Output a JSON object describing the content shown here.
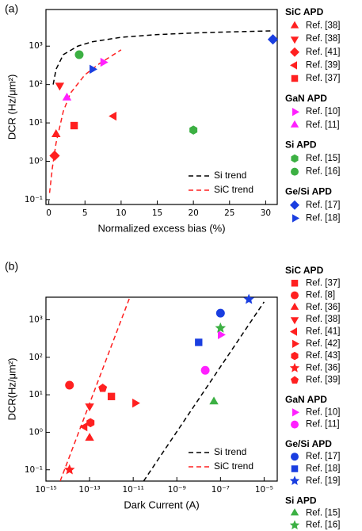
{
  "chart_data": [
    {
      "type": "scatter",
      "panel_label": "(a)",
      "xlabel": "Normalized excess bias (%)",
      "ylabel": "DCR (Hz/μm²)",
      "xscale": "linear",
      "yscale": "log",
      "xlim": [
        -0.4,
        31.6
      ],
      "ylim": [
        0.075,
        9000
      ],
      "xticks": [
        0,
        5,
        10,
        15,
        20,
        25,
        30
      ],
      "yticks": [
        {
          "value": 0.1,
          "label": "10⁻¹"
        },
        {
          "value": 1,
          "label": "10⁰"
        },
        {
          "value": 10,
          "label": "10¹"
        },
        {
          "value": 100,
          "label": "10²"
        },
        {
          "value": 1000,
          "label": "10³"
        }
      ],
      "trend_legend": "lower right",
      "trends": [
        {
          "name": "Si trend",
          "color": "#000000",
          "x": [
            0.6,
            1,
            2,
            4,
            6,
            10,
            15,
            20,
            25,
            31
          ],
          "values": [
            100,
            250,
            600,
            1000,
            1300,
            1700,
            2000,
            2200,
            2350,
            2500
          ]
        },
        {
          "name": "SiC trend",
          "color": "#ff2020",
          "x": [
            0.1,
            0.5,
            1,
            2,
            3,
            5,
            7,
            10
          ],
          "values": [
            0.15,
            0.7,
            3,
            20,
            60,
            180,
            350,
            800
          ]
        }
      ],
      "groups": [
        {
          "name": "SiC APD",
          "series": [
            {
              "name": "Ref. [38]",
              "marker": "triangle-up",
              "color": "#ff2020",
              "x": [
                1.0
              ],
              "values": [
                5
              ]
            },
            {
              "name": "Ref. [38]",
              "marker": "triangle-down",
              "color": "#ff2020",
              "x": [
                1.5
              ],
              "values": [
                95
              ]
            },
            {
              "name": "Ref. [41]",
              "marker": "diamond",
              "color": "#ff2020",
              "x": [
                0.8
              ],
              "values": [
                1.4
              ]
            },
            {
              "name": "Ref. [39]",
              "marker": "triangle-left",
              "color": "#ff2020",
              "x": [
                9
              ],
              "values": [
                15
              ]
            },
            {
              "name": "Ref. [37]",
              "marker": "square",
              "color": "#ff2020",
              "x": [
                3.5
              ],
              "values": [
                8.5
              ]
            }
          ]
        },
        {
          "name": "GaN APD",
          "series": [
            {
              "name": "Ref. [10]",
              "marker": "triangle-right",
              "color": "#ff20ff",
              "x": [
                7.5
              ],
              "values": [
                380
              ]
            },
            {
              "name": "Ref. [11]",
              "marker": "triangle-up",
              "color": "#ff20ff",
              "x": [
                2.5
              ],
              "values": [
                45
              ]
            }
          ]
        },
        {
          "name": "Si APD",
          "series": [
            {
              "name": "Ref. [15]",
              "marker": "hexagon",
              "color": "#3cb043",
              "x": [
                20
              ],
              "values": [
                6.5
              ]
            },
            {
              "name": "Ref. [16]",
              "marker": "circle",
              "color": "#3cb043",
              "x": [
                4.2
              ],
              "values": [
                600
              ]
            }
          ]
        },
        {
          "name": "Ge/Si APD",
          "series": [
            {
              "name": "Ref. [17]",
              "marker": "diamond",
              "color": "#1a3ee0",
              "x": [
                31
              ],
              "values": [
                1500
              ]
            },
            {
              "name": "Ref. [18]",
              "marker": "triangle-right",
              "color": "#1a3ee0",
              "x": [
                6
              ],
              "values": [
                250
              ]
            }
          ]
        }
      ]
    },
    {
      "type": "scatter",
      "panel_label": "(b)",
      "xlabel": "Dark Current (A)",
      "ylabel": "DCR(Hz/μm²)",
      "xscale": "log",
      "yscale": "log",
      "xlim": [
        1e-15,
        4e-05
      ],
      "ylim": [
        0.05,
        4000
      ],
      "xticks": [
        {
          "value": 1e-15,
          "label": "10⁻¹⁵"
        },
        {
          "value": 1e-13,
          "label": "10⁻¹³"
        },
        {
          "value": 1e-11,
          "label": "10⁻¹¹"
        },
        {
          "value": 1e-09,
          "label": "10⁻⁹"
        },
        {
          "value": 1e-07,
          "label": "10⁻⁷"
        },
        {
          "value": 1e-05,
          "label": "10⁻⁵"
        }
      ],
      "yticks": [
        {
          "value": 0.1,
          "label": "10⁻¹"
        },
        {
          "value": 1,
          "label": "10⁰"
        },
        {
          "value": 10,
          "label": "10¹"
        },
        {
          "value": 100,
          "label": "10²"
        },
        {
          "value": 1000,
          "label": "10³"
        }
      ],
      "trend_legend": "lower right",
      "trends": [
        {
          "name": "Si trend",
          "color": "#000000",
          "x": [
            3e-11,
            1e-05
          ],
          "values": [
            0.05,
            3000
          ]
        },
        {
          "name": "SiC trend",
          "color": "#ff2020",
          "x": [
            4.5e-15,
            7e-12
          ],
          "values": [
            0.05,
            4000
          ]
        }
      ],
      "groups": [
        {
          "name": "SiC APD",
          "series": [
            {
              "name": "Ref. [37]",
              "marker": "square",
              "color": "#ff2020",
              "x": [
                1e-12
              ],
              "values": [
                9
              ]
            },
            {
              "name": "Ref. [8]",
              "marker": "circle",
              "color": "#ff2020",
              "x": [
                1.2e-14
              ],
              "values": [
                18
              ]
            },
            {
              "name": "Ref. [36]",
              "marker": "triangle-up",
              "color": "#ff2020",
              "x": [
                1e-13
              ],
              "values": [
                0.7
              ]
            },
            {
              "name": "Ref. [38]",
              "marker": "triangle-down",
              "color": "#ff2020",
              "x": [
                1e-13
              ],
              "values": [
                5
              ]
            },
            {
              "name": "Ref. [41]",
              "marker": "triangle-left",
              "color": "#ff2020",
              "x": [
                6e-14
              ],
              "values": [
                1.4
              ]
            },
            {
              "name": "Ref. [42]",
              "marker": "triangle-right",
              "color": "#ff2020",
              "x": [
                1.2e-11
              ],
              "values": [
                6
              ]
            },
            {
              "name": "Ref. [43]",
              "marker": "hexagon",
              "color": "#ff2020",
              "x": [
                1.1e-13
              ],
              "values": [
                1.8
              ]
            },
            {
              "name": "Ref. [36]",
              "marker": "star",
              "color": "#ff2020",
              "x": [
                1.2e-14
              ],
              "values": [
                0.1
              ]
            },
            {
              "name": "Ref. [39]",
              "marker": "pentagon",
              "color": "#ff2020",
              "x": [
                4e-13
              ],
              "values": [
                15
              ]
            }
          ]
        },
        {
          "name": "GaN APD",
          "series": [
            {
              "name": "Ref. [10]",
              "marker": "triangle-right",
              "color": "#ff20ff",
              "x": [
                1e-07
              ],
              "values": [
                400
              ]
            },
            {
              "name": "Ref. [11]",
              "marker": "circle",
              "color": "#ff20ff",
              "x": [
                2e-08
              ],
              "values": [
                45
              ]
            }
          ]
        },
        {
          "name": "Ge/Si APD",
          "series": [
            {
              "name": "Ref. [17]",
              "marker": "circle",
              "color": "#1a3ee0",
              "x": [
                1e-07
              ],
              "values": [
                1500
              ]
            },
            {
              "name": "Ref. [18]",
              "marker": "square",
              "color": "#1a3ee0",
              "x": [
                1e-08
              ],
              "values": [
                250
              ]
            },
            {
              "name": "Ref. [19]",
              "marker": "star",
              "color": "#1a3ee0",
              "x": [
                2e-06
              ],
              "values": [
                3500
              ]
            }
          ]
        },
        {
          "name": "Si APD",
          "series": [
            {
              "name": "Ref. [15]",
              "marker": "triangle-up",
              "color": "#3cb043",
              "x": [
                5e-08
              ],
              "values": [
                6.5
              ]
            },
            {
              "name": "Ref. [16]",
              "marker": "star",
              "color": "#3cb043",
              "x": [
                1e-07
              ],
              "values": [
                600
              ]
            }
          ]
        }
      ]
    }
  ]
}
